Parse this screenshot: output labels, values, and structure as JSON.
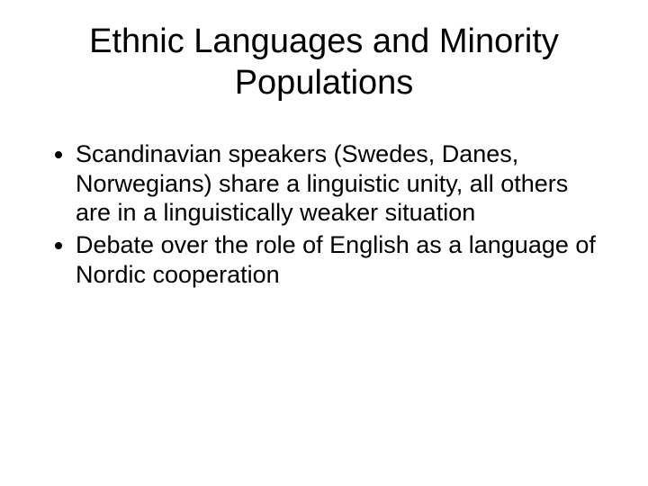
{
  "slide": {
    "title": "Ethnic Languages and Minority Populations",
    "bullets": [
      "Scandinavian speakers (Swedes, Danes, Norwegians) share a linguistic unity, all others are in a linguistically weaker situation",
      "Debate over the role of English as a language of Nordic cooperation"
    ],
    "background_color": "#ffffff",
    "text_color": "#000000",
    "title_fontsize": 38,
    "body_fontsize": 27,
    "font_family": "Arial"
  }
}
